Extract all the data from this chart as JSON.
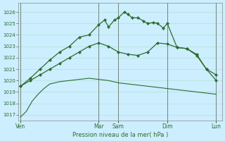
{
  "background_color": "#cceeff",
  "grid_color": "#aaddcc",
  "line_color": "#2d6b2d",
  "x_ticks_labels": [
    "Ven",
    "Mar",
    "Sam",
    "Dim",
    "Lun"
  ],
  "x_ticks_pos": [
    0,
    4,
    5,
    7.5,
    10
  ],
  "ylabel_text": "Pression niveau de la mer( hPa )",
  "ylim": [
    1016.5,
    1026.8
  ],
  "yticks": [
    1017,
    1018,
    1019,
    1020,
    1021,
    1022,
    1023,
    1024,
    1025,
    1026
  ],
  "line1_x": [
    0,
    0.3,
    0.6,
    0.9,
    1.2,
    1.5,
    2.0,
    2.5,
    3.0,
    3.5,
    4.0,
    4.5,
    5.0,
    5.5,
    6.0,
    6.5,
    7.0,
    7.5,
    8.0,
    8.5,
    9.0,
    9.5,
    10.0
  ],
  "line1_y": [
    1016.8,
    1017.3,
    1018.2,
    1018.8,
    1019.3,
    1019.7,
    1019.9,
    1020.0,
    1020.1,
    1020.2,
    1020.1,
    1020.0,
    1019.8,
    1019.7,
    1019.6,
    1019.5,
    1019.4,
    1019.3,
    1019.2,
    1019.1,
    1019.0,
    1018.9,
    1018.8
  ],
  "line2_x": [
    0,
    0.5,
    1.0,
    1.5,
    2.0,
    2.5,
    3.0,
    3.5,
    4.0,
    4.5,
    5.0,
    5.5,
    6.0,
    6.5,
    7.0,
    7.5,
    8.0,
    8.5,
    9.0,
    9.5,
    10.0
  ],
  "line2_y": [
    1019.5,
    1020.0,
    1020.5,
    1021.0,
    1021.5,
    1022.0,
    1022.5,
    1023.0,
    1023.3,
    1023.0,
    1022.5,
    1022.3,
    1022.2,
    1022.5,
    1023.3,
    1023.2,
    1022.9,
    1022.8,
    1022.2,
    1021.0,
    1020.5
  ],
  "line3_x": [
    0,
    0.5,
    1.0,
    1.5,
    2.0,
    2.5,
    3.0,
    3.5,
    4.0,
    4.3,
    4.5,
    4.8,
    5.0,
    5.3,
    5.5,
    5.7,
    6.0,
    6.3,
    6.5,
    6.8,
    7.0,
    7.3,
    7.5,
    8.0,
    8.5,
    9.0,
    9.5,
    10.0
  ],
  "line3_y": [
    1019.5,
    1020.2,
    1021.0,
    1021.8,
    1022.5,
    1023.0,
    1023.8,
    1024.0,
    1024.9,
    1025.3,
    1024.7,
    1025.3,
    1025.5,
    1026.0,
    1025.8,
    1025.5,
    1025.5,
    1025.2,
    1025.0,
    1025.1,
    1025.0,
    1024.6,
    1025.0,
    1022.9,
    1022.8,
    1022.3,
    1021.0,
    1020.0
  ]
}
